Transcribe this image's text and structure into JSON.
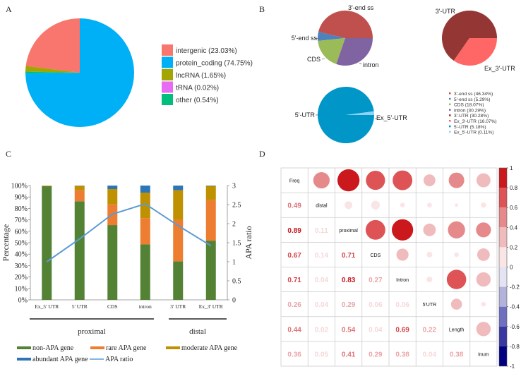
{
  "panels": {
    "A": "A",
    "B": "B",
    "C": "C",
    "D": "D"
  },
  "chart_data": [
    {
      "id": "A",
      "type": "pie",
      "title": "",
      "slices": [
        {
          "label": "intergenic",
          "value": 23.03,
          "legend": "intergenic (23.03%)",
          "color": "#F8766D"
        },
        {
          "label": "lncRNA",
          "value": 1.65,
          "legend": "lncRNA (1.65%)",
          "color": "#A3A500"
        },
        {
          "label": "other",
          "value": 0.54,
          "legend": "other (0.54%)",
          "color": "#00BF7D"
        },
        {
          "label": "tRNA",
          "value": 0.02,
          "legend": "tRNA (0.02%)",
          "color": "#E76BF3"
        },
        {
          "label": "protein_coding",
          "value": 74.75,
          "legend": "protein_coding (74.75%)",
          "color": "#00B0F6"
        }
      ],
      "legend_order": [
        "intergenic",
        "protein_coding",
        "lncRNA",
        "tRNA",
        "other"
      ],
      "legend_position": "right"
    },
    {
      "id": "B1",
      "type": "pie",
      "slices": [
        {
          "label": "3'-end ss",
          "value": 46.34,
          "color": "#C0504D"
        },
        {
          "label": "5'-end ss",
          "value": 5.29,
          "color": "#4F81BD"
        },
        {
          "label": "CDS",
          "value": 18.07,
          "color": "#9BBB59"
        },
        {
          "label": "intron",
          "value": 30.29,
          "color": "#8064A2"
        }
      ]
    },
    {
      "id": "B2",
      "type": "pie",
      "slices": [
        {
          "label": "3'-UTR",
          "value": 30.28,
          "color": "#943634"
        },
        {
          "label": "Ex_3'-UTR",
          "value": 16.07,
          "color": "#FF6666"
        }
      ]
    },
    {
      "id": "B3",
      "type": "pie",
      "slices": [
        {
          "label": "5'-UTR",
          "value": 5.18,
          "color": "#0096C8"
        },
        {
          "label": "Ex_5'-UTR",
          "value": 0.11,
          "color": "#8DD3F5"
        }
      ]
    },
    {
      "id": "B-legend",
      "type": "legend",
      "entries": [
        {
          "text": "3'-end ss (46.34%)",
          "color": "#C0504D"
        },
        {
          "text": "5'-end ss (5.29%)",
          "color": "#4F81BD"
        },
        {
          "text": "CDS (18.07%)",
          "color": "#9BBB59"
        },
        {
          "text": "intron (30.29%)",
          "color": "#8064A2"
        },
        {
          "text": "3'-UTR (30.28%)",
          "color": "#943634"
        },
        {
          "text": "Ex_3'-UTR (16.07%)",
          "color": "#FF6666"
        },
        {
          "text": "5'-UTR (5.18%)",
          "color": "#0096C8"
        },
        {
          "text": "Ex_5'-UTR (0.11%)",
          "color": "#8DD3F5"
        }
      ]
    },
    {
      "id": "C",
      "type": "bar",
      "stacked": true,
      "categories": [
        "Ex_5' UTR",
        "5' UTR",
        "CDS",
        "intron",
        "3' UTR",
        "Ex_3' UTR"
      ],
      "groups": [
        {
          "label": "proximal",
          "categories": [
            "Ex_5' UTR",
            "5' UTR",
            "CDS",
            "intron"
          ]
        },
        {
          "label": "distal",
          "categories": [
            "3' UTR",
            "Ex_3' UTR"
          ]
        }
      ],
      "series": [
        {
          "name": "non-APA gene",
          "color": "#548235",
          "values": [
            99.5,
            86.2,
            65.4,
            48.5,
            33.6,
            51.8
          ]
        },
        {
          "name": "rare APA gene",
          "color": "#ED7D31",
          "values": [
            0.5,
            9.7,
            18.1,
            23.0,
            36.5,
            35.4
          ]
        },
        {
          "name": "moderate APA gene",
          "color": "#BF9000",
          "values": [
            0.0,
            3.9,
            13.4,
            22.3,
            25.8,
            12.4
          ]
        },
        {
          "name": "abundant APA gene",
          "color": "#2E75B6",
          "values": [
            0.0,
            0.2,
            3.1,
            6.2,
            4.1,
            0.4
          ]
        }
      ],
      "line": {
        "name": "APA ratio",
        "color": "#5B9BD5",
        "values": [
          1.0,
          1.6,
          2.25,
          2.52,
          1.95,
          1.42
        ]
      },
      "ylabel": "Percentage",
      "y2label": "APA ratio",
      "ylim": [
        0,
        100
      ],
      "y2lim": [
        0,
        3
      ],
      "yticks": [
        "0%",
        "10%",
        "20%",
        "30%",
        "40%",
        "50%",
        "60%",
        "70%",
        "80%",
        "90%",
        "100%"
      ],
      "y2ticks": [
        "0",
        "0.5",
        "1",
        "1.5",
        "2",
        "2.5",
        "3"
      ],
      "legend_position": "bottom"
    },
    {
      "id": "D",
      "type": "heatmap",
      "variables": [
        "Freq",
        "distal",
        "proximal",
        "CDS",
        "Intron",
        "5'UTR",
        "Length",
        "Inum"
      ],
      "correlations": [
        [
          1,
          0.49,
          0.89,
          0.67,
          0.71,
          0.26,
          0.44,
          0.36
        ],
        [
          0.49,
          1,
          0.11,
          0.14,
          0.04,
          0.04,
          0.02,
          0.05
        ],
        [
          0.89,
          0.11,
          1,
          0.71,
          0.83,
          0.29,
          0.54,
          0.41
        ],
        [
          0.67,
          0.14,
          0.71,
          1,
          0.27,
          0.06,
          0.04,
          0.29
        ],
        [
          0.71,
          0.04,
          0.83,
          0.27,
          1,
          0.06,
          0.69,
          0.38
        ],
        [
          0.26,
          0.04,
          0.29,
          0.06,
          0.06,
          1,
          0.22,
          0.04
        ],
        [
          0.44,
          0.02,
          0.54,
          0.04,
          0.69,
          0.22,
          1,
          0.38
        ],
        [
          0.36,
          0.05,
          0.41,
          0.29,
          0.38,
          0.04,
          0.38,
          1
        ]
      ],
      "lower": "number",
      "upper": "circle",
      "colorbar": {
        "range": [
          -1,
          1
        ],
        "ticks": [
          "1",
          "0.8",
          "0.6",
          "0.4",
          "0.2",
          "0",
          "-0.2",
          "-0.4",
          "-0.6",
          "-0.8",
          "-1"
        ],
        "colors": [
          "#CB181D",
          "#DE5356",
          "#E5898B",
          "#F0BBBD",
          "#FAE5E6",
          "#E3E3F3",
          "#B2B2DB",
          "#7070C0",
          "#3838A0",
          "#000080"
        ]
      }
    }
  ]
}
